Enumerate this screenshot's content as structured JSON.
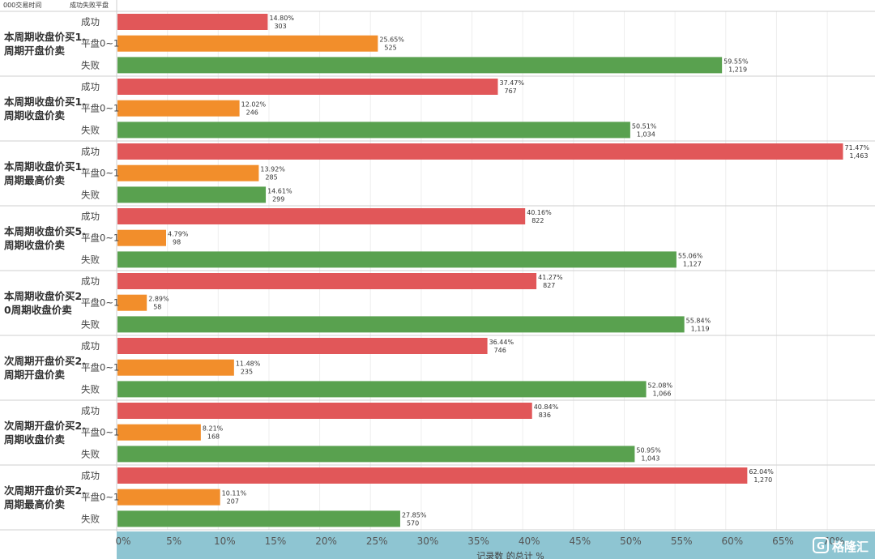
{
  "header": {
    "col1": "000交易时间",
    "col2": "成功失败平盘"
  },
  "chart_data": {
    "type": "bar",
    "orientation": "horizontal",
    "xlabel": "记录数 的总计 %",
    "xlim": [
      0,
      74
    ],
    "xticks": [
      "0%",
      "5%",
      "10%",
      "15%",
      "20%",
      "25%",
      "30%",
      "35%",
      "40%",
      "45%",
      "50%",
      "55%",
      "60%",
      "65%",
      "70%"
    ],
    "grid": "vertical",
    "series_colors": {
      "成功": "#e15759",
      "平盘0~1": "#f28e2b",
      "失败": "#59a14f"
    },
    "groups": [
      {
        "label_lines": [
          "本周期收盘价买1.",
          "周期开盘价卖"
        ],
        "bars": [
          {
            "category": "成功",
            "pct": 14.8,
            "pct_label": "14.80%",
            "count_label": "303"
          },
          {
            "category": "平盘0~1",
            "pct": 25.65,
            "pct_label": "25.65%",
            "count_label": "525"
          },
          {
            "category": "失败",
            "pct": 59.55,
            "pct_label": "59.55%",
            "count_label": "1,219"
          }
        ]
      },
      {
        "label_lines": [
          "本周期收盘价买1.",
          "周期收盘价卖"
        ],
        "bars": [
          {
            "category": "成功",
            "pct": 37.47,
            "pct_label": "37.47%",
            "count_label": "767"
          },
          {
            "category": "平盘0~1",
            "pct": 12.02,
            "pct_label": "12.02%",
            "count_label": "246"
          },
          {
            "category": "失败",
            "pct": 50.51,
            "pct_label": "50.51%",
            "count_label": "1,034"
          }
        ]
      },
      {
        "label_lines": [
          "本周期收盘价买1.",
          "周期最高价卖"
        ],
        "bars": [
          {
            "category": "成功",
            "pct": 71.47,
            "pct_label": "71.47%",
            "count_label": "1,463"
          },
          {
            "category": "平盘0~1",
            "pct": 13.92,
            "pct_label": "13.92%",
            "count_label": "285"
          },
          {
            "category": "失败",
            "pct": 14.61,
            "pct_label": "14.61%",
            "count_label": "299"
          }
        ]
      },
      {
        "label_lines": [
          "本周期收盘价买5.",
          "周期收盘价卖"
        ],
        "bars": [
          {
            "category": "成功",
            "pct": 40.16,
            "pct_label": "40.16%",
            "count_label": "822"
          },
          {
            "category": "平盘0~1",
            "pct": 4.79,
            "pct_label": "4.79%",
            "count_label": "98"
          },
          {
            "category": "失败",
            "pct": 55.06,
            "pct_label": "55.06%",
            "count_label": "1,127"
          }
        ]
      },
      {
        "label_lines": [
          "本周期收盘价买2",
          "0周期收盘价卖"
        ],
        "bars": [
          {
            "category": "成功",
            "pct": 41.27,
            "pct_label": "41.27%",
            "count_label": "827"
          },
          {
            "category": "平盘0~1",
            "pct": 2.89,
            "pct_label": "2.89%",
            "count_label": "58"
          },
          {
            "category": "失败",
            "pct": 55.84,
            "pct_label": "55.84%",
            "count_label": "1,119"
          }
        ]
      },
      {
        "label_lines": [
          "次周期开盘价买2.",
          "周期开盘价卖"
        ],
        "bars": [
          {
            "category": "成功",
            "pct": 36.44,
            "pct_label": "36.44%",
            "count_label": "746"
          },
          {
            "category": "平盘0~1",
            "pct": 11.48,
            "pct_label": "11.48%",
            "count_label": "235"
          },
          {
            "category": "失败",
            "pct": 52.08,
            "pct_label": "52.08%",
            "count_label": "1,066"
          }
        ]
      },
      {
        "label_lines": [
          "次周期开盘价买2.",
          "周期收盘价卖"
        ],
        "bars": [
          {
            "category": "成功",
            "pct": 40.84,
            "pct_label": "40.84%",
            "count_label": "836"
          },
          {
            "category": "平盘0~1",
            "pct": 8.21,
            "pct_label": "8.21%",
            "count_label": "168"
          },
          {
            "category": "失败",
            "pct": 50.95,
            "pct_label": "50.95%",
            "count_label": "1,043"
          }
        ]
      },
      {
        "label_lines": [
          "次周期开盘价买2.",
          "周期最高价卖"
        ],
        "bars": [
          {
            "category": "成功",
            "pct": 62.04,
            "pct_label": "62.04%",
            "count_label": "1,270"
          },
          {
            "category": "平盘0~1",
            "pct": 10.11,
            "pct_label": "10.11%",
            "count_label": "207"
          },
          {
            "category": "失败",
            "pct": 27.85,
            "pct_label": "27.85%",
            "count_label": "570"
          }
        ]
      }
    ]
  },
  "watermark": {
    "text": "格隆汇",
    "icon": "G-logo-icon"
  },
  "colors": {
    "axis_band": "#8ec5d2",
    "separator": "#cfcfcf",
    "grid": "#eeeeee"
  }
}
